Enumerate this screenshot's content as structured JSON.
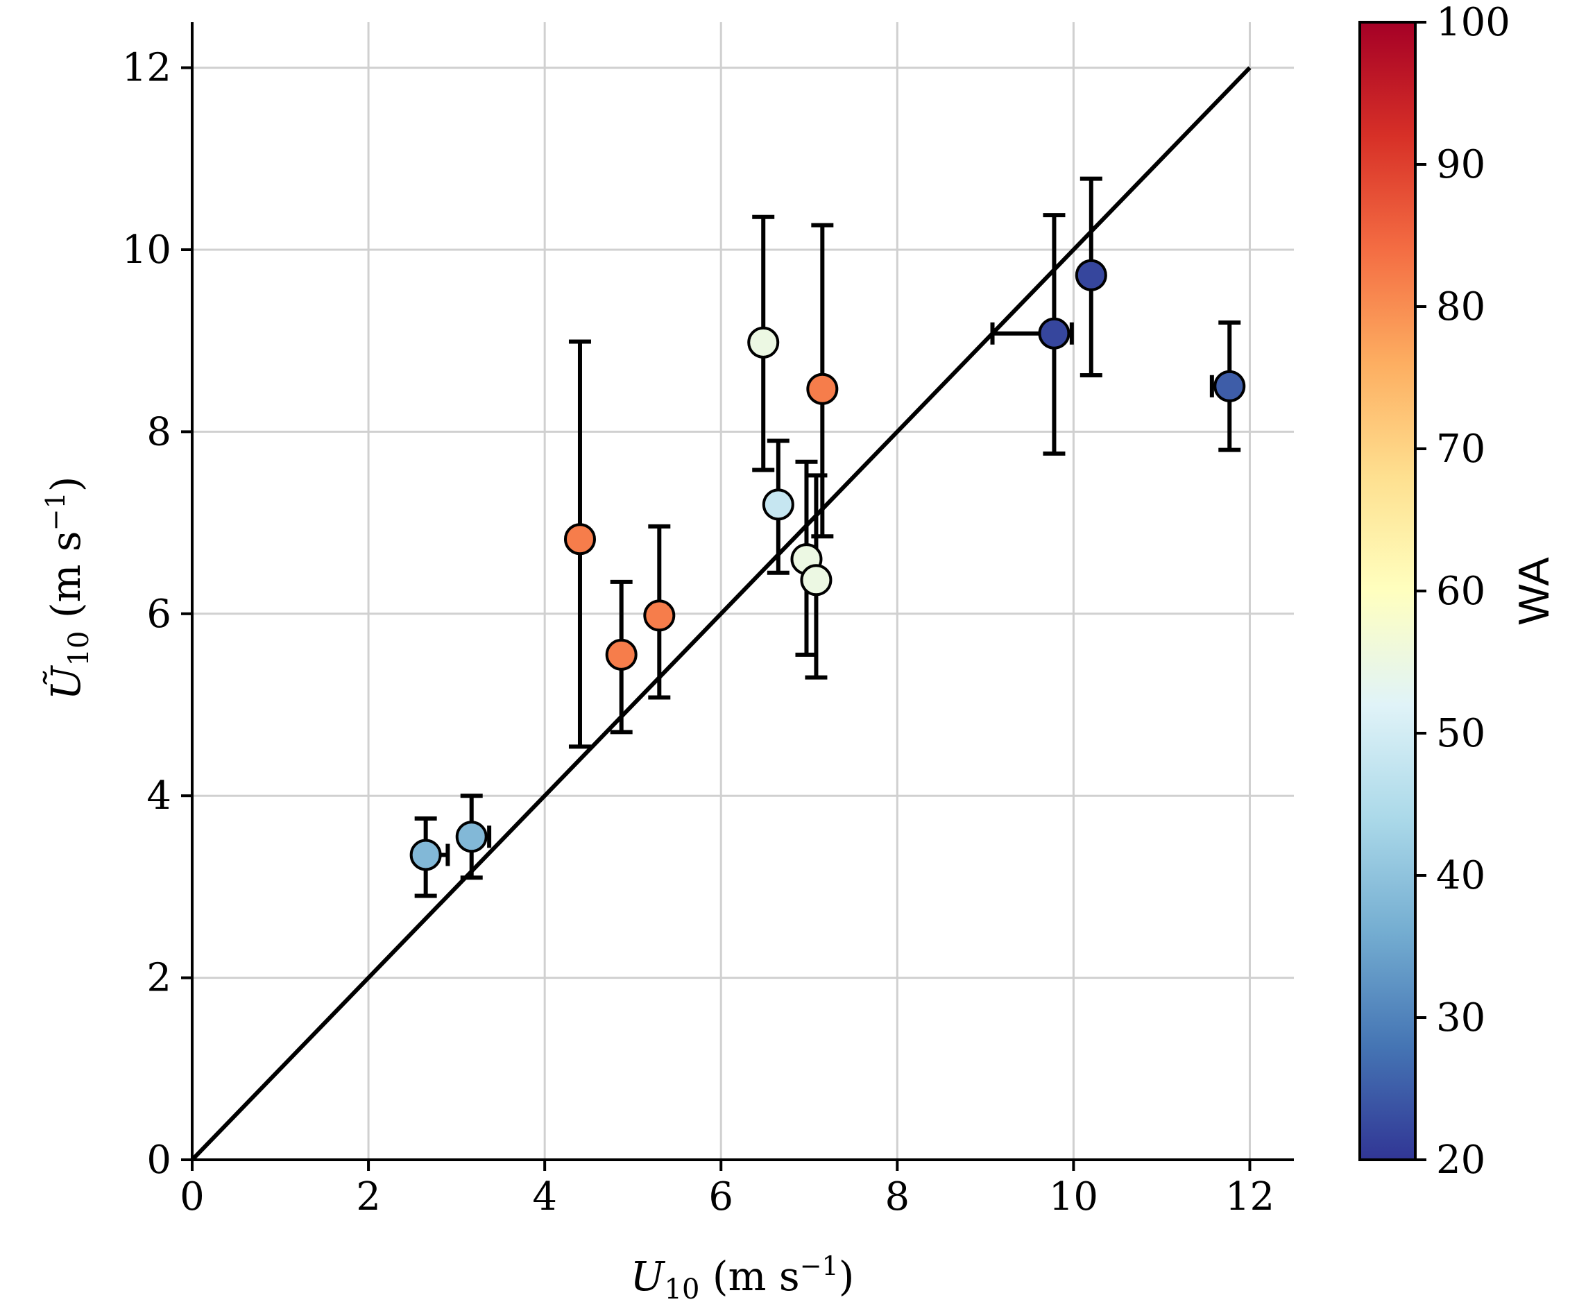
{
  "chart_data": {
    "type": "scatter",
    "x_axis": {
      "label_main": "U",
      "label_sub": "10",
      "label_units_pre": " (m s",
      "label_units_sup": "−1",
      "label_units_post": ")",
      "range": [
        0,
        12.5
      ],
      "ticks": [
        0,
        2,
        4,
        6,
        8,
        10,
        12
      ]
    },
    "y_axis": {
      "label_main": "Ũ",
      "label_sub": "10",
      "label_units_pre": " (m s",
      "label_units_sup": "−1",
      "label_units_post": ")",
      "range": [
        0,
        12.5
      ],
      "ticks": [
        0,
        2,
        4,
        6,
        8,
        10,
        12
      ]
    },
    "grid": true,
    "reference_line": {
      "x": [
        0,
        12
      ],
      "y": [
        0,
        12
      ],
      "color": "#000000"
    },
    "colorbar": {
      "label": "WA",
      "range": [
        20,
        100
      ],
      "ticks": [
        20,
        30,
        40,
        50,
        60,
        70,
        80,
        90,
        100
      ],
      "colormap_stops": [
        "#313695",
        "#4575b4",
        "#74add1",
        "#abd9e9",
        "#e0f3f8",
        "#ffffbf",
        "#fee090",
        "#fdae61",
        "#f46d43",
        "#d73027",
        "#a50026"
      ]
    },
    "points": [
      {
        "x": 2.65,
        "y": 3.35,
        "x_err": [
          0.1,
          0.25
        ],
        "y_err": [
          0.45,
          0.4
        ],
        "wa": 38
      },
      {
        "x": 3.17,
        "y": 3.55,
        "x_err": [
          0.1,
          0.2
        ],
        "y_err": [
          0.45,
          0.45
        ],
        "wa": 38
      },
      {
        "x": 4.4,
        "y": 6.82,
        "x_err": [
          0,
          0
        ],
        "y_err": [
          2.28,
          2.17
        ],
        "wa": 82
      },
      {
        "x": 4.87,
        "y": 5.55,
        "x_err": [
          0,
          0
        ],
        "y_err": [
          0.85,
          0.8
        ],
        "wa": 82
      },
      {
        "x": 5.3,
        "y": 5.98,
        "x_err": [
          0,
          0
        ],
        "y_err": [
          0.9,
          0.98
        ],
        "wa": 82
      },
      {
        "x": 6.48,
        "y": 8.98,
        "x_err": [
          0,
          0
        ],
        "y_err": [
          1.4,
          1.38
        ],
        "wa": 55
      },
      {
        "x": 6.65,
        "y": 7.2,
        "x_err": [
          0,
          0
        ],
        "y_err": [
          0.75,
          0.7
        ],
        "wa": 48
      },
      {
        "x": 6.97,
        "y": 6.6,
        "x_err": [
          0,
          0
        ],
        "y_err": [
          1.05,
          1.07
        ],
        "wa": 55
      },
      {
        "x": 7.08,
        "y": 6.37,
        "x_err": [
          0,
          0
        ],
        "y_err": [
          1.07,
          1.15
        ],
        "wa": 55
      },
      {
        "x": 7.15,
        "y": 8.47,
        "x_err": [
          0,
          0
        ],
        "y_err": [
          1.62,
          1.8
        ],
        "wa": 82
      },
      {
        "x": 9.78,
        "y": 9.08,
        "x_err": [
          0.7,
          0.2
        ],
        "y_err": [
          1.32,
          1.3
        ],
        "wa": 22
      },
      {
        "x": 10.2,
        "y": 9.72,
        "x_err": [
          0,
          0
        ],
        "y_err": [
          1.1,
          1.06
        ],
        "wa": 22
      },
      {
        "x": 11.77,
        "y": 8.5,
        "x_err": [
          0.2,
          0
        ],
        "y_err": [
          0.7,
          0.7
        ],
        "wa": 25
      }
    ]
  }
}
